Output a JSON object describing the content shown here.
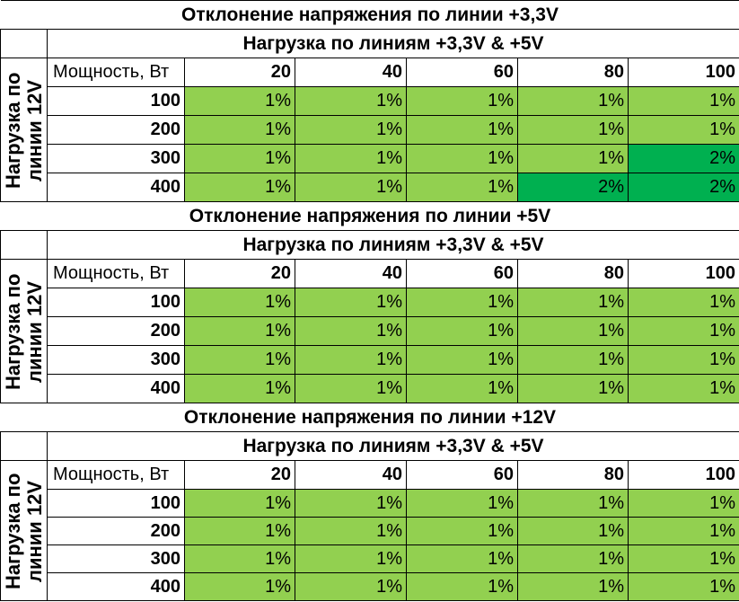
{
  "sections": [
    {
      "title": "Отклонение напряжения по линии +3,3V",
      "subtitle": "Нагрузка по линиям +3,3V & +5V",
      "row_group_label": "Нагрузка по линии 12V",
      "column_header_label": "Мощность, Вт",
      "columns": [
        20,
        40,
        60,
        80,
        100
      ],
      "rows": [
        {
          "label": 100,
          "cells": [
            {
              "text": "1%",
              "color": "#92d050"
            },
            {
              "text": "1%",
              "color": "#92d050"
            },
            {
              "text": "1%",
              "color": "#92d050"
            },
            {
              "text": "1%",
              "color": "#92d050"
            },
            {
              "text": "1%",
              "color": "#92d050"
            }
          ]
        },
        {
          "label": 200,
          "cells": [
            {
              "text": "1%",
              "color": "#92d050"
            },
            {
              "text": "1%",
              "color": "#92d050"
            },
            {
              "text": "1%",
              "color": "#92d050"
            },
            {
              "text": "1%",
              "color": "#92d050"
            },
            {
              "text": "1%",
              "color": "#92d050"
            }
          ]
        },
        {
          "label": 300,
          "cells": [
            {
              "text": "1%",
              "color": "#92d050"
            },
            {
              "text": "1%",
              "color": "#92d050"
            },
            {
              "text": "1%",
              "color": "#92d050"
            },
            {
              "text": "1%",
              "color": "#92d050"
            },
            {
              "text": "2%",
              "color": "#00b050"
            }
          ]
        },
        {
          "label": 400,
          "cells": [
            {
              "text": "1%",
              "color": "#92d050"
            },
            {
              "text": "1%",
              "color": "#92d050"
            },
            {
              "text": "1%",
              "color": "#92d050"
            },
            {
              "text": "2%",
              "color": "#00b050"
            },
            {
              "text": "2%",
              "color": "#00b050"
            }
          ]
        }
      ]
    },
    {
      "title": "Отклонение напряжения по линии +5V",
      "subtitle": "Нагрузка по линиям +3,3V & +5V",
      "row_group_label": "Нагрузка по линии 12V",
      "column_header_label": "Мощность, Вт",
      "columns": [
        20,
        40,
        60,
        80,
        100
      ],
      "rows": [
        {
          "label": 100,
          "cells": [
            {
              "text": "1%",
              "color": "#92d050"
            },
            {
              "text": "1%",
              "color": "#92d050"
            },
            {
              "text": "1%",
              "color": "#92d050"
            },
            {
              "text": "1%",
              "color": "#92d050"
            },
            {
              "text": "1%",
              "color": "#92d050"
            }
          ]
        },
        {
          "label": 200,
          "cells": [
            {
              "text": "1%",
              "color": "#92d050"
            },
            {
              "text": "1%",
              "color": "#92d050"
            },
            {
              "text": "1%",
              "color": "#92d050"
            },
            {
              "text": "1%",
              "color": "#92d050"
            },
            {
              "text": "1%",
              "color": "#92d050"
            }
          ]
        },
        {
          "label": 300,
          "cells": [
            {
              "text": "1%",
              "color": "#92d050"
            },
            {
              "text": "1%",
              "color": "#92d050"
            },
            {
              "text": "1%",
              "color": "#92d050"
            },
            {
              "text": "1%",
              "color": "#92d050"
            },
            {
              "text": "1%",
              "color": "#92d050"
            }
          ]
        },
        {
          "label": 400,
          "cells": [
            {
              "text": "1%",
              "color": "#92d050"
            },
            {
              "text": "1%",
              "color": "#92d050"
            },
            {
              "text": "1%",
              "color": "#92d050"
            },
            {
              "text": "1%",
              "color": "#92d050"
            },
            {
              "text": "1%",
              "color": "#92d050"
            }
          ]
        }
      ]
    },
    {
      "title": "Отклонение напряжения по линии +12V",
      "subtitle": "Нагрузка по линиям +3,3V & +5V",
      "row_group_label": "Нагрузка по линии 12V",
      "column_header_label": "Мощность, Вт",
      "columns": [
        20,
        40,
        60,
        80,
        100
      ],
      "rows": [
        {
          "label": 100,
          "cells": [
            {
              "text": "1%",
              "color": "#92d050"
            },
            {
              "text": "1%",
              "color": "#92d050"
            },
            {
              "text": "1%",
              "color": "#92d050"
            },
            {
              "text": "1%",
              "color": "#92d050"
            },
            {
              "text": "1%",
              "color": "#92d050"
            }
          ]
        },
        {
          "label": 200,
          "cells": [
            {
              "text": "1%",
              "color": "#92d050"
            },
            {
              "text": "1%",
              "color": "#92d050"
            },
            {
              "text": "1%",
              "color": "#92d050"
            },
            {
              "text": "1%",
              "color": "#92d050"
            },
            {
              "text": "1%",
              "color": "#92d050"
            }
          ]
        },
        {
          "label": 300,
          "cells": [
            {
              "text": "1%",
              "color": "#92d050"
            },
            {
              "text": "1%",
              "color": "#92d050"
            },
            {
              "text": "1%",
              "color": "#92d050"
            },
            {
              "text": "1%",
              "color": "#92d050"
            },
            {
              "text": "1%",
              "color": "#92d050"
            }
          ]
        },
        {
          "label": 400,
          "cells": [
            {
              "text": "1%",
              "color": "#92d050"
            },
            {
              "text": "1%",
              "color": "#92d050"
            },
            {
              "text": "1%",
              "color": "#92d050"
            },
            {
              "text": "1%",
              "color": "#92d050"
            },
            {
              "text": "1%",
              "color": "#92d050"
            }
          ]
        }
      ]
    }
  ]
}
